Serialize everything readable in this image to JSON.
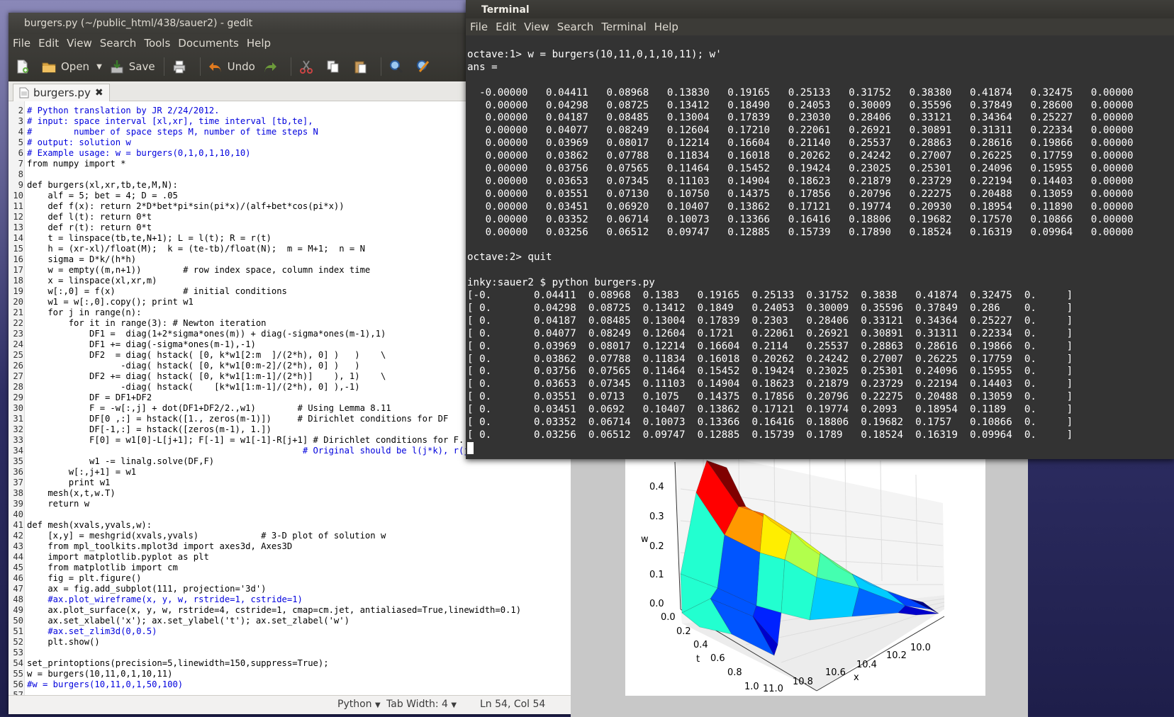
{
  "gedit": {
    "title": "burgers.py (~/public_html/438/sauer2) - gedit",
    "menu": [
      "File",
      "Edit",
      "View",
      "Search",
      "Tools",
      "Documents",
      "Help"
    ],
    "toolbar": {
      "open": "Open",
      "save": "Save",
      "undo": "Undo"
    },
    "tab_label": "burgers.py",
    "code_lines": [
      {
        "n": "2",
        "t": "# Python translation by JR 2/24/2012."
      },
      {
        "n": "3",
        "t": "# input: space interval [xl,xr], time interval [tb,te],"
      },
      {
        "n": "4",
        "t": "#        number of space steps M, number of time steps N"
      },
      {
        "n": "5",
        "t": "# output: solution w"
      },
      {
        "n": "6",
        "t": "# Example usage: w = burgers(0,1,0,1,10,10)"
      },
      {
        "n": "7",
        "t": "from numpy import *"
      },
      {
        "n": "8",
        "t": ""
      },
      {
        "n": "9",
        "t": "def burgers(xl,xr,tb,te,M,N):"
      },
      {
        "n": "10",
        "t": "    alf = 5; bet = 4; D = .05"
      },
      {
        "n": "11",
        "t": "    def f(x): return 2*D*bet*pi*sin(pi*x)/(alf+bet*cos(pi*x))"
      },
      {
        "n": "12",
        "t": "    def l(t): return 0*t"
      },
      {
        "n": "13",
        "t": "    def r(t): return 0*t"
      },
      {
        "n": "14",
        "t": "    t = linspace(tb,te,N+1); L = l(t); R = r(t)"
      },
      {
        "n": "15",
        "t": "    h = (xr-xl)/float(M);  k = (te-tb)/float(N);  m = M+1;  n = N"
      },
      {
        "n": "16",
        "t": "    sigma = D*k/(h*h)"
      },
      {
        "n": "17",
        "t": "    w = empty((m,n+1))        # row index space, column index time"
      },
      {
        "n": "18",
        "t": "    x = linspace(xl,xr,m)"
      },
      {
        "n": "19",
        "t": "    w[:,0] = f(x)             # initial conditions"
      },
      {
        "n": "20",
        "t": "    w1 = w[:,0].copy(); print w1"
      },
      {
        "n": "21",
        "t": "    for j in range(n):"
      },
      {
        "n": "22",
        "t": "        for it in range(3): # Newton iteration"
      },
      {
        "n": "23",
        "t": "            DF1 =  diag(1+2*sigma*ones(m)) + diag(-sigma*ones(m-1),1)"
      },
      {
        "n": "24",
        "t": "            DF1 += diag(-sigma*ones(m-1),-1)"
      },
      {
        "n": "25",
        "t": "            DF2  = diag( hstack( [0, k*w1[2:m  ]/(2*h), 0] )   )    \\"
      },
      {
        "n": "26",
        "t": "                  -diag( hstack( [0, k*w1[0:m-2]/(2*h), 0] )   )"
      },
      {
        "n": "27",
        "t": "            DF2 += diag( hstack( [0, k*w1[1:m-1]/(2*h)]    ), 1)    \\"
      },
      {
        "n": "28",
        "t": "                  -diag( hstack(    [k*w1[1:m-1]/(2*h), 0] ),-1)"
      },
      {
        "n": "29",
        "t": "            DF = DF1+DF2"
      },
      {
        "n": "30",
        "t": "            F = -w[:,j] + dot(DF1+DF2/2.,w1)        # Using Lemma 8.11"
      },
      {
        "n": "31",
        "t": "            DF[0 ,:] = hstack([1., zeros(m-1)])     # Dirichlet conditions for DF"
      },
      {
        "n": "32",
        "t": "            DF[-1,:] = hstack([zeros(m-1), 1.])"
      },
      {
        "n": "33",
        "t": "            F[0] = w1[0]-L[j+1]; F[-1] = w1[-1]-R[j+1] # Dirichlet conditions for F."
      },
      {
        "n": "34",
        "t": "                                                     # Original should be l(j*k), r(j*k)?"
      },
      {
        "n": "35",
        "t": "            w1 -= linalg.solve(DF,F)"
      },
      {
        "n": "36",
        "t": "        w[:,j+1] = w1"
      },
      {
        "n": "37",
        "t": "        print w1"
      },
      {
        "n": "38",
        "t": "    mesh(x,t,w.T)"
      },
      {
        "n": "39",
        "t": "    return w"
      },
      {
        "n": "40",
        "t": ""
      },
      {
        "n": "41",
        "t": "def mesh(xvals,yvals,w):"
      },
      {
        "n": "42",
        "t": "    [x,y] = meshgrid(xvals,yvals)            # 3-D plot of solution w"
      },
      {
        "n": "43",
        "t": "    from mpl_toolkits.mplot3d import axes3d, Axes3D"
      },
      {
        "n": "44",
        "t": "    import matplotlib.pyplot as plt"
      },
      {
        "n": "45",
        "t": "    from matplotlib import cm"
      },
      {
        "n": "46",
        "t": "    fig = plt.figure()"
      },
      {
        "n": "47",
        "t": "    ax = fig.add_subplot(111, projection='3d')"
      },
      {
        "n": "48",
        "t": "    #ax.plot_wireframe(x, y, w, rstride=1, cstride=1)"
      },
      {
        "n": "49",
        "t": "    ax.plot_surface(x, y, w, rstride=4, cstride=1, cmap=cm.jet, antialiased=True,linewidth=0.1)"
      },
      {
        "n": "50",
        "t": "    ax.set_xlabel('x'); ax.set_ylabel('t'); ax.set_zlabel('w')"
      },
      {
        "n": "51",
        "t": "    #ax.set_zlim3d(0,0.5)"
      },
      {
        "n": "52",
        "t": "    plt.show()"
      },
      {
        "n": "53",
        "t": ""
      },
      {
        "n": "54",
        "t": "set_printoptions(precision=5,linewidth=150,suppress=True);"
      },
      {
        "n": "55",
        "t": "w = burgers(10,11,0,1,10,11)"
      },
      {
        "n": "56",
        "t": "#w = burgers(10,11,0,1,50,100)"
      },
      {
        "n": "57",
        "t": ""
      }
    ],
    "status": {
      "language": "Python",
      "tab_width": "Tab Width: 4",
      "position": "Ln 54, Col 54"
    }
  },
  "terminal": {
    "title": "Terminal",
    "menu": [
      "File",
      "Edit",
      "View",
      "Search",
      "Terminal",
      "Help"
    ],
    "lines": [
      "",
      "octave:1> w = burgers(10,11,0,1,10,11); w'",
      "ans =",
      "",
      "  -0.00000   0.04411   0.08968   0.13830   0.19165   0.25133   0.31752   0.38380   0.41874   0.32475   0.00000",
      "   0.00000   0.04298   0.08725   0.13412   0.18490   0.24053   0.30009   0.35596   0.37849   0.28600   0.00000",
      "   0.00000   0.04187   0.08485   0.13004   0.17839   0.23030   0.28406   0.33121   0.34364   0.25227   0.00000",
      "   0.00000   0.04077   0.08249   0.12604   0.17210   0.22061   0.26921   0.30891   0.31311   0.22334   0.00000",
      "   0.00000   0.03969   0.08017   0.12214   0.16604   0.21140   0.25537   0.28863   0.28616   0.19866   0.00000",
      "   0.00000   0.03862   0.07788   0.11834   0.16018   0.20262   0.24242   0.27007   0.26225   0.17759   0.00000",
      "   0.00000   0.03756   0.07565   0.11464   0.15452   0.19424   0.23025   0.25301   0.24096   0.15955   0.00000",
      "   0.00000   0.03653   0.07345   0.11103   0.14904   0.18623   0.21879   0.23729   0.22194   0.14403   0.00000",
      "   0.00000   0.03551   0.07130   0.10750   0.14375   0.17856   0.20796   0.22275   0.20488   0.13059   0.00000",
      "   0.00000   0.03451   0.06920   0.10407   0.13862   0.17121   0.19774   0.20930   0.18954   0.11890   0.00000",
      "   0.00000   0.03352   0.06714   0.10073   0.13366   0.16416   0.18806   0.19682   0.17570   0.10866   0.00000",
      "   0.00000   0.03256   0.06512   0.09747   0.12885   0.15739   0.17890   0.18524   0.16319   0.09964   0.00000",
      "",
      "octave:2> quit",
      "",
      "inky:sauer2 $ python burgers.py",
      "[-0.       0.04411  0.08968  0.1383   0.19165  0.25133  0.31752  0.3838   0.41874  0.32475  0.     ]",
      "[ 0.       0.04298  0.08725  0.13412  0.1849   0.24053  0.30009  0.35596  0.37849  0.286    0.     ]",
      "[ 0.       0.04187  0.08485  0.13004  0.17839  0.2303   0.28406  0.33121  0.34364  0.25227  0.     ]",
      "[ 0.       0.04077  0.08249  0.12604  0.1721   0.22061  0.26921  0.30891  0.31311  0.22334  0.     ]",
      "[ 0.       0.03969  0.08017  0.12214  0.16604  0.2114   0.25537  0.28863  0.28616  0.19866  0.     ]",
      "[ 0.       0.03862  0.07788  0.11834  0.16018  0.20262  0.24242  0.27007  0.26225  0.17759  0.     ]",
      "[ 0.       0.03756  0.07565  0.11464  0.15452  0.19424  0.23025  0.25301  0.24096  0.15955  0.     ]",
      "[ 0.       0.03653  0.07345  0.11103  0.14904  0.18623  0.21879  0.23729  0.22194  0.14403  0.     ]",
      "[ 0.       0.03551  0.0713   0.1075   0.14375  0.17856  0.20796  0.22275  0.20488  0.13059  0.     ]",
      "[ 0.       0.03451  0.0692   0.10407  0.13862  0.17121  0.19774  0.2093   0.18954  0.1189   0.     ]",
      "[ 0.       0.03352  0.06714  0.10073  0.13366  0.16416  0.18806  0.19682  0.1757   0.10866  0.     ]",
      "[ 0.       0.03256  0.06512  0.09747  0.12885  0.15739  0.1789   0.18524  0.16319  0.09964  0.     ]"
    ]
  },
  "plot": {
    "z_ticks": [
      "0.0",
      "0.1",
      "0.2",
      "0.3",
      "0.4"
    ],
    "t_ticks": [
      "0.0",
      "0.2",
      "0.4",
      "0.6",
      "0.8",
      "1.0"
    ],
    "x_ticks": [
      "11.0",
      "10.8",
      "10.6",
      "10.4",
      "10.2",
      "10.0"
    ],
    "zlabel": "w",
    "tlabel": "t",
    "xlabel": "x",
    "colors": {
      "red": "#ff0000",
      "dark_red": "#800000",
      "orange": "#ff9900",
      "yellow": "#ffee00",
      "green_yellow": "#b2ff4c",
      "cyan": "#22ffd0",
      "blue": "#0055ff",
      "navy": "#000080"
    }
  }
}
